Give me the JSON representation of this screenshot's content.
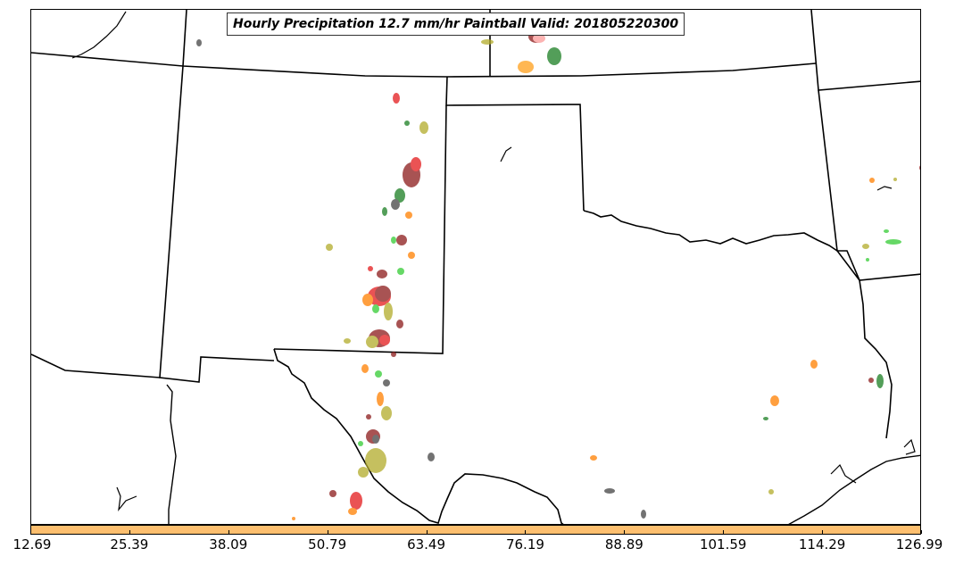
{
  "title": "Hourly Precipitation 12.7 mm/hr Paintball Valid: 201805220300",
  "colorbar": {
    "color": "#fdbf6f",
    "ticks": [
      "12.69",
      "25.39",
      "38.09",
      "50.79",
      "63.49",
      "76.19",
      "88.89",
      "101.59",
      "114.29",
      "126.99"
    ]
  },
  "member_colors": [
    "#e31a1c",
    "#ff7f00",
    "#b2ab2a",
    "#1a7e22",
    "#33cc33",
    "#8b1a1a",
    "#444444",
    "#fdbf6f"
  ]
}
